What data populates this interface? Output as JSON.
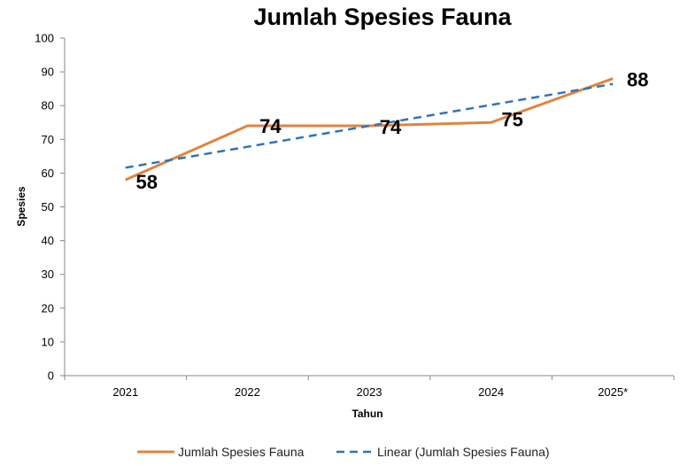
{
  "chart_data": {
    "type": "line",
    "title": "Jumlah Spesies Fauna",
    "xlabel": "Tahun",
    "ylabel": "Spesies",
    "categories": [
      "2021",
      "2022",
      "2023",
      "2024",
      "2025*"
    ],
    "series": [
      {
        "name": "Jumlah Spesies Fauna",
        "values": [
          58,
          74,
          74,
          75,
          88
        ],
        "color": "#E0843F",
        "style": "solid",
        "data_labels": [
          "58",
          "74",
          "74",
          "75",
          "88"
        ]
      },
      {
        "name": "Linear (Jumlah Spesies Fauna)",
        "values": [
          61.6,
          67.8,
          74.0,
          80.2,
          86.4
        ],
        "color": "#2E75B6",
        "style": "dashed"
      }
    ],
    "ylim": [
      0,
      100
    ],
    "yticks": [
      "0",
      "10",
      "20",
      "30",
      "40",
      "50",
      "60",
      "70",
      "80",
      "90",
      "100"
    ],
    "grid": false,
    "legend": "bottom"
  }
}
